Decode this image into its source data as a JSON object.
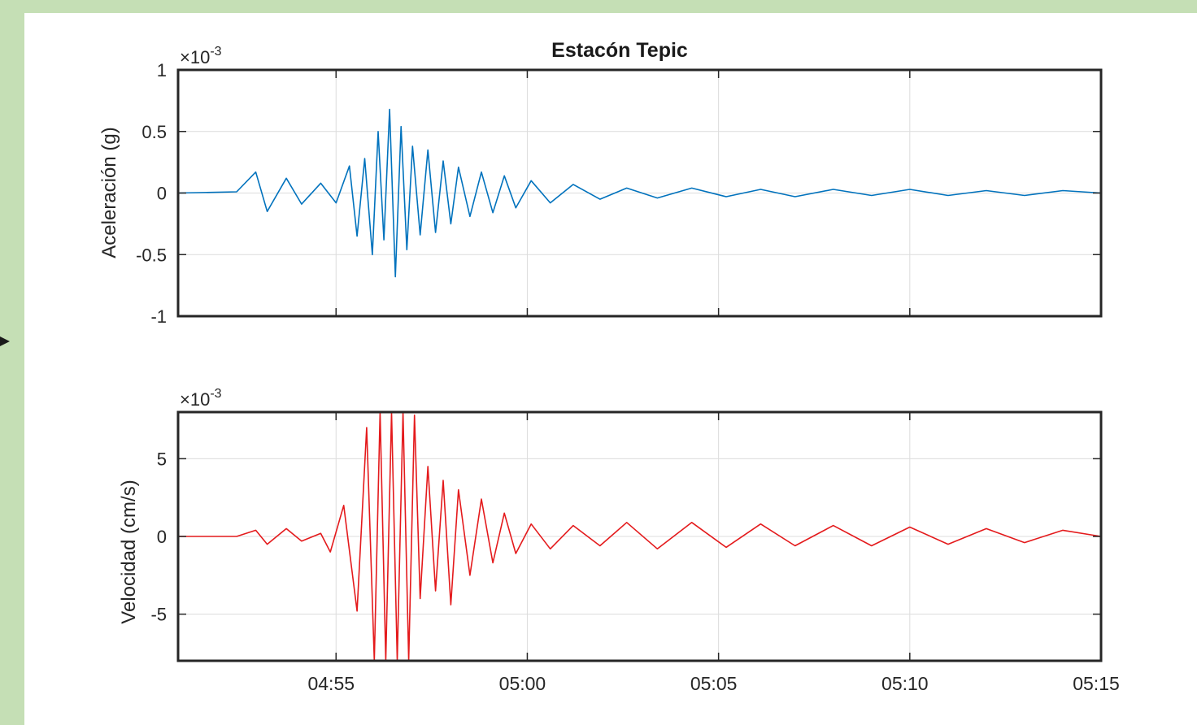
{
  "colors": {
    "background": "#c5dfb5",
    "panel": "#ffffff",
    "acceleration": "#0072bd",
    "velocity": "#e41a1c",
    "grid": "#dcdcdc",
    "axes": "#262626"
  },
  "time_ticks": [
    "04:55",
    "05:00",
    "05:05",
    "05:10",
    "05:15"
  ],
  "chart_data": [
    {
      "type": "line",
      "title": "Estacón Tepic",
      "xlabel": "",
      "ylabel": "Aceleración (g)",
      "exponent_base": "×10",
      "exponent_power": "-3",
      "x_units": "minutes after 04:50",
      "xlim": [
        0.87,
        25
      ],
      "ylim": [
        -1,
        1
      ],
      "yticks": [
        -1,
        -0.5,
        0,
        0.5,
        1
      ],
      "ytick_labels": [
        "-1",
        "-0.5",
        "0",
        "0.5",
        "1"
      ],
      "xticks": [
        5,
        10,
        15,
        20,
        25
      ],
      "grid": true,
      "series": [
        {
          "color": "#0072bd",
          "x": [
            0.87,
            2.4,
            2.9,
            3.2,
            3.7,
            4.1,
            4.6,
            5.0,
            5.35,
            5.55,
            5.75,
            5.95,
            6.1,
            6.25,
            6.4,
            6.55,
            6.7,
            6.85,
            7.0,
            7.2,
            7.4,
            7.6,
            7.8,
            8.0,
            8.2,
            8.5,
            8.8,
            9.1,
            9.4,
            9.7,
            10.1,
            10.6,
            11.2,
            11.9,
            12.6,
            13.4,
            14.3,
            15.2,
            16.1,
            17.0,
            18.0,
            19.0,
            20.0,
            21.0,
            22.0,
            23.0,
            24.0,
            25.0
          ],
          "values": [
            0.0,
            0.01,
            0.17,
            -0.15,
            0.12,
            -0.09,
            0.08,
            -0.08,
            0.22,
            -0.35,
            0.28,
            -0.5,
            0.5,
            -0.38,
            0.68,
            -0.68,
            0.54,
            -0.46,
            0.38,
            -0.34,
            0.35,
            -0.32,
            0.26,
            -0.25,
            0.21,
            -0.19,
            0.17,
            -0.16,
            0.14,
            -0.12,
            0.1,
            -0.08,
            0.07,
            -0.05,
            0.04,
            -0.04,
            0.04,
            -0.03,
            0.03,
            -0.03,
            0.03,
            -0.02,
            0.03,
            -0.02,
            0.02,
            -0.02,
            0.02,
            0.0
          ]
        }
      ]
    },
    {
      "type": "line",
      "title": "",
      "xlabel": "",
      "ylabel": "Velocidad (cm/s)",
      "exponent_base": "×10",
      "exponent_power": "-3",
      "x_units": "minutes after 04:50",
      "xlim": [
        0.87,
        25
      ],
      "ylim": [
        -8,
        8
      ],
      "yticks": [
        -5,
        0,
        5
      ],
      "ytick_labels": [
        "-5",
        "0",
        "5"
      ],
      "xticks": [
        5,
        10,
        15,
        20,
        25
      ],
      "xtick_labels": [
        "04:55",
        "05:00",
        "05:05",
        "05:10",
        "05:15"
      ],
      "grid": true,
      "series": [
        {
          "color": "#e41a1c",
          "x": [
            0.87,
            2.4,
            2.9,
            3.2,
            3.7,
            4.1,
            4.6,
            4.85,
            5.2,
            5.55,
            5.8,
            6.0,
            6.15,
            6.3,
            6.45,
            6.6,
            6.75,
            6.9,
            7.05,
            7.2,
            7.4,
            7.6,
            7.8,
            8.0,
            8.2,
            8.5,
            8.8,
            9.1,
            9.4,
            9.7,
            10.1,
            10.6,
            11.2,
            11.9,
            12.6,
            13.4,
            14.3,
            15.2,
            16.1,
            17.0,
            18.0,
            19.0,
            20.0,
            21.0,
            22.0,
            23.0,
            24.0,
            25.0
          ],
          "values": [
            0.0,
            0.0,
            0.4,
            -0.5,
            0.5,
            -0.3,
            0.2,
            -1.0,
            2.0,
            -4.8,
            7.0,
            -8.0,
            8.0,
            -8.0,
            8.0,
            -8.0,
            8.0,
            -8.0,
            7.8,
            -4.0,
            4.5,
            -3.5,
            3.6,
            -4.4,
            3.0,
            -2.5,
            2.4,
            -1.7,
            1.5,
            -1.1,
            0.8,
            -0.8,
            0.7,
            -0.6,
            0.9,
            -0.8,
            0.9,
            -0.7,
            0.8,
            -0.6,
            0.7,
            -0.6,
            0.6,
            -0.5,
            0.5,
            -0.4,
            0.4,
            0.0
          ]
        }
      ]
    }
  ]
}
